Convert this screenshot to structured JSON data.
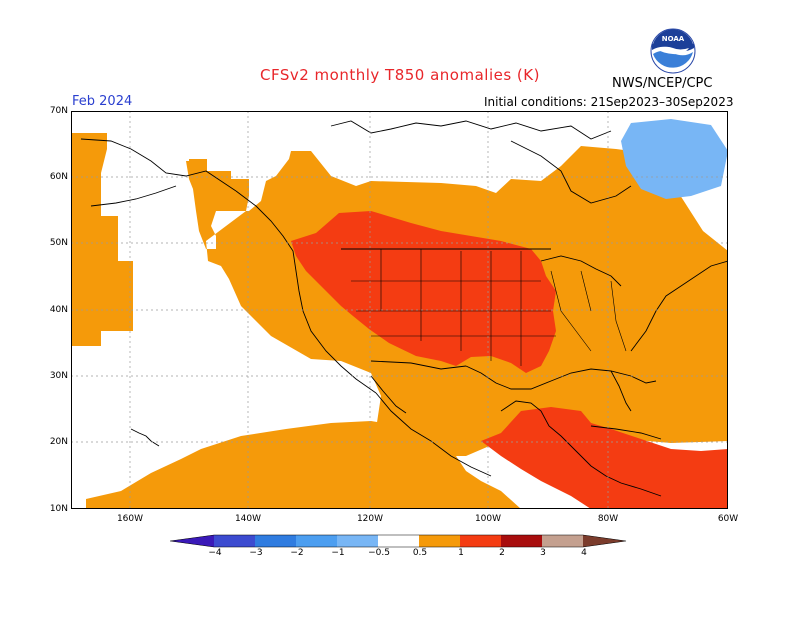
{
  "header": {
    "title": "CFSv2 monthly T850 anomalies (K)",
    "org": "NWS/NCEP/CPC",
    "logo_text": "NOAA",
    "month": "Feb 2024",
    "initial_conditions": "Initial conditions: 21Sep2023–30Sep2023"
  },
  "axes": {
    "lat_labels": [
      "70N",
      "60N",
      "50N",
      "40N",
      "30N",
      "20N",
      "10N"
    ],
    "lon_labels": [
      "160W",
      "140W",
      "120W",
      "100W",
      "80W",
      "60W"
    ]
  },
  "colorbar": {
    "ticks": [
      "−4",
      "−3",
      "−2",
      "−1",
      "−0.5",
      "0.5",
      "1",
      "2",
      "3",
      "4"
    ],
    "colors": [
      "#3a19b8",
      "#3c4bd0",
      "#2f7ce0",
      "#4c9ef0",
      "#78b6f5",
      "#ffffff",
      "#f59a0a",
      "#f43c12",
      "#a80d0d",
      "#c4a08f",
      "#7b3c2c"
    ]
  },
  "legend_colors": {
    "anomaly_0_5_to_1": "#f59a0a",
    "anomaly_1_to_2": "#f43c12",
    "anomaly_neg1_to_neg0_5": "#78b6f5"
  }
}
